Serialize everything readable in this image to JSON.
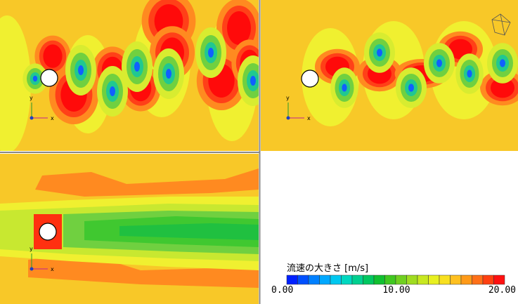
{
  "panels": [
    {
      "axis_x": "x",
      "axis_y": "y"
    },
    {
      "axis_x": "x",
      "axis_y": "y"
    },
    {
      "axis_x": "x",
      "axis_y": "y"
    }
  ],
  "legend": {
    "title": "流速の大きさ [m/s]",
    "ticks": [
      "0.00",
      "10.00",
      "20.00"
    ],
    "colors": [
      "#0020ff",
      "#0050ff",
      "#0080ff",
      "#00a8ff",
      "#00c8f0",
      "#00d8c0",
      "#00d090",
      "#00c860",
      "#10c030",
      "#40c820",
      "#70d020",
      "#a0dc20",
      "#c8e820",
      "#e8f020",
      "#f8e020",
      "#ffc020",
      "#ff9a18",
      "#ff7018",
      "#ff4010",
      "#ff1010"
    ]
  }
}
